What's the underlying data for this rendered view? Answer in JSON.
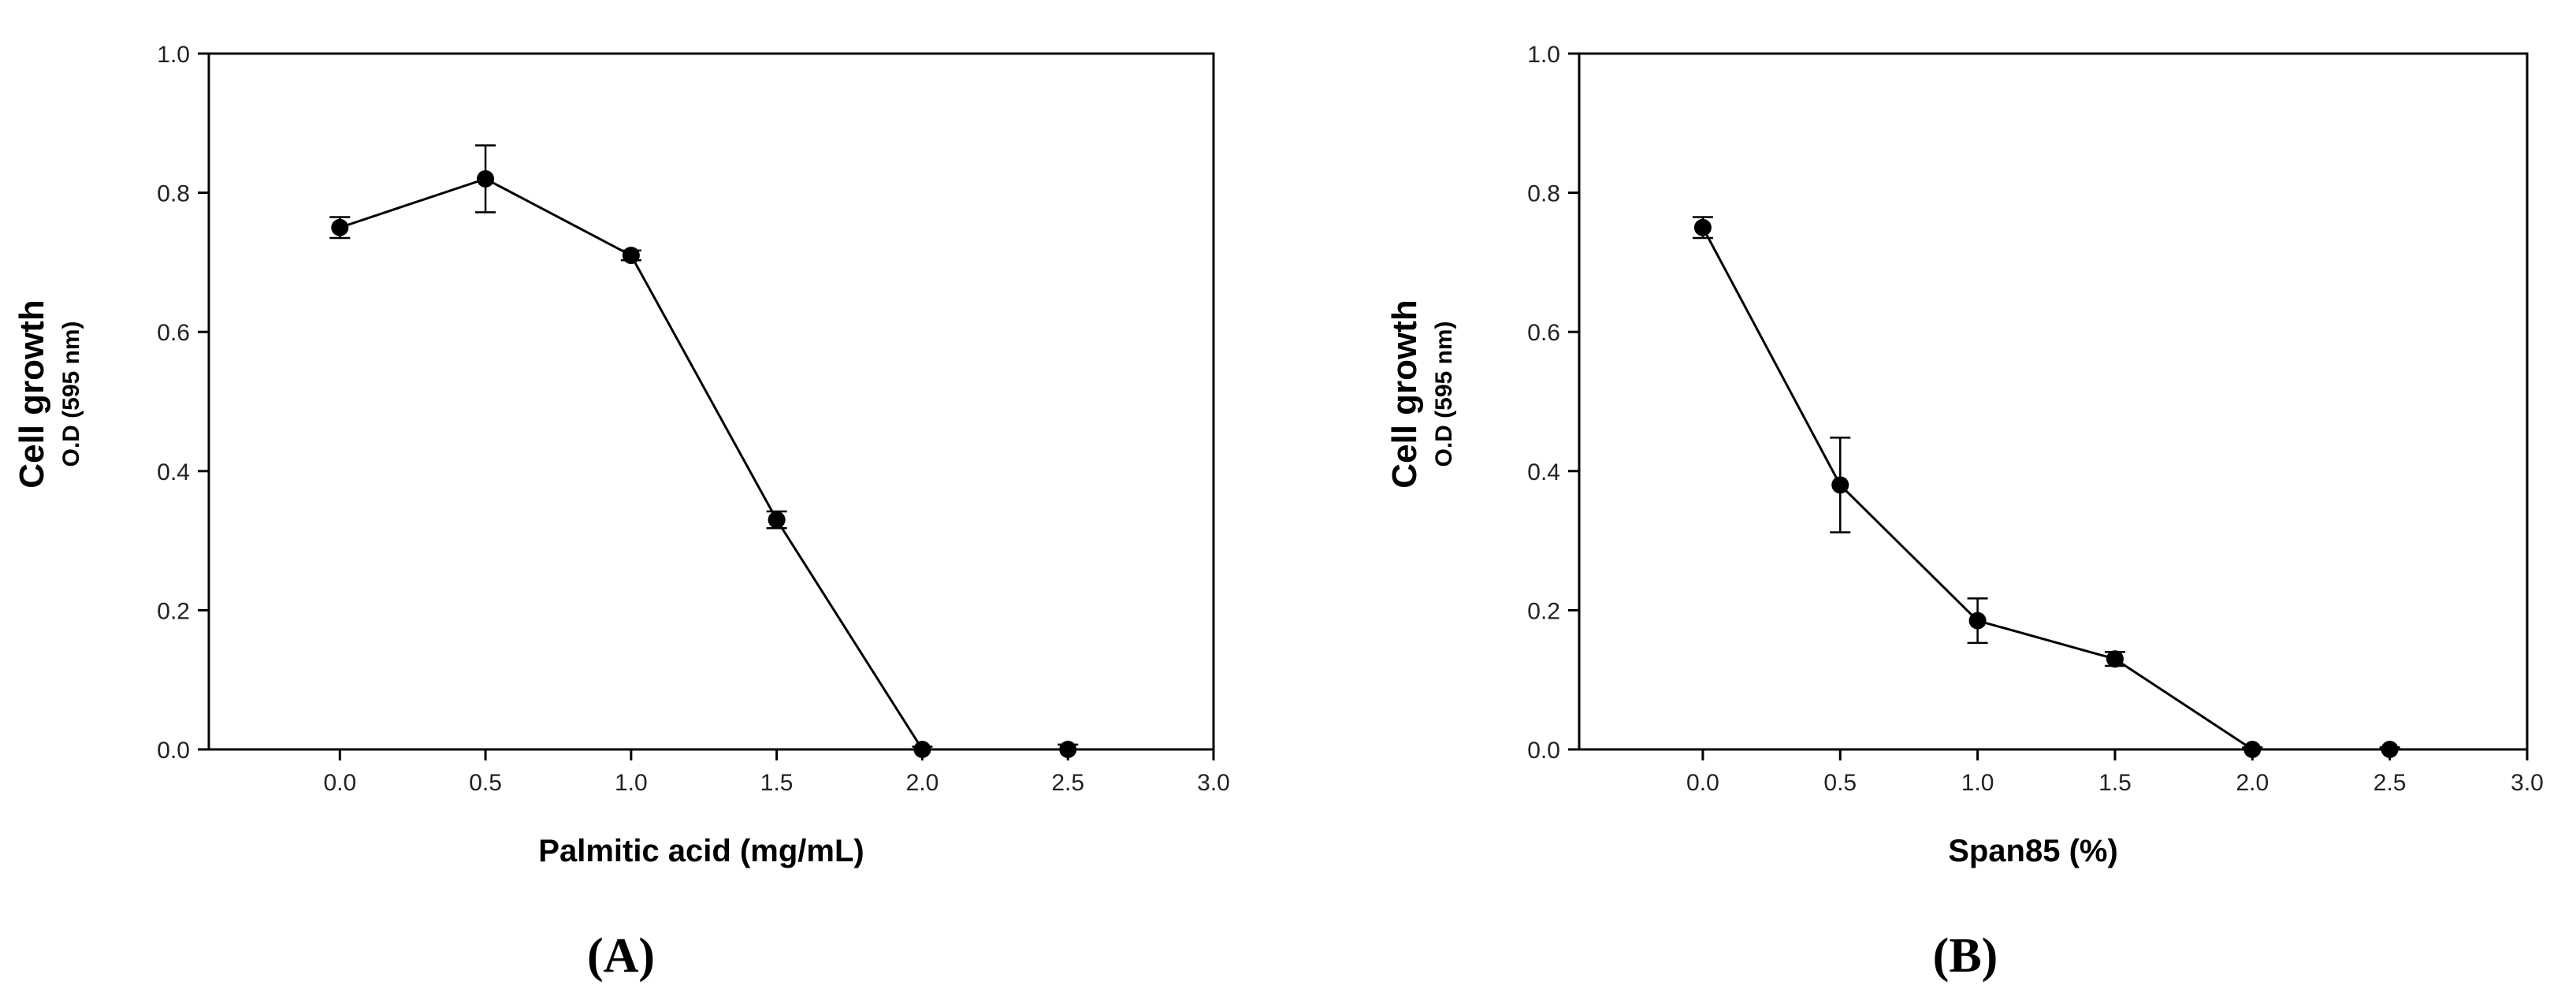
{
  "chart_data": [
    {
      "type": "line",
      "panel_label": "(A)",
      "title": "",
      "xlabel": "Palmitic acid (mg/mL)",
      "ylabel": "Cell growth",
      "ylabel_sub": "O.D (595 nm)",
      "xlim": [
        -0.45,
        3.0
      ],
      "ylim": [
        0.0,
        1.0
      ],
      "x_ticks": [
        0.0,
        0.5,
        1.0,
        1.5,
        2.0,
        2.5,
        3.0
      ],
      "x_tick_labels": [
        "0.0",
        "0.5",
        "1.0",
        "1.5",
        "2.0",
        "2.5",
        "3.0"
      ],
      "y_ticks": [
        0.0,
        0.2,
        0.4,
        0.6,
        0.8,
        1.0
      ],
      "y_tick_labels": [
        "0.0",
        "0.2",
        "0.4",
        "0.6",
        "0.8",
        "1.0"
      ],
      "grid": false,
      "series": [
        {
          "x": [
            0.0,
            0.5,
            1.0,
            1.5,
            2.0,
            2.5
          ],
          "y": [
            0.75,
            0.82,
            0.71,
            0.33,
            0.0,
            0.0
          ],
          "error": [
            0.015,
            0.048,
            0.007,
            0.012,
            0.004,
            0.007
          ]
        }
      ]
    },
    {
      "type": "line",
      "panel_label": "(B)",
      "title": "",
      "xlabel": "Span85 (%)",
      "ylabel": "Cell growth",
      "ylabel_sub": "O.D (595 nm)",
      "xlim": [
        -0.45,
        3.0
      ],
      "ylim": [
        0.0,
        1.0
      ],
      "x_ticks": [
        0.0,
        0.5,
        1.0,
        1.5,
        2.0,
        2.5,
        3.0
      ],
      "x_tick_labels": [
        "0.0",
        "0.5",
        "1.0",
        "1.5",
        "2.0",
        "2.5",
        "3.0"
      ],
      "y_ticks": [
        0.0,
        0.2,
        0.4,
        0.6,
        0.8,
        1.0
      ],
      "y_tick_labels": [
        "0.0",
        "0.2",
        "0.4",
        "0.6",
        "0.8",
        "1.0"
      ],
      "grid": false,
      "series": [
        {
          "x": [
            0.0,
            0.5,
            1.0,
            1.5,
            2.0,
            2.5
          ],
          "y": [
            0.75,
            0.38,
            0.185,
            0.13,
            0.0,
            0.0
          ],
          "error": [
            0.015,
            0.068,
            0.032,
            0.01,
            0.003,
            0.003
          ]
        }
      ]
    }
  ]
}
